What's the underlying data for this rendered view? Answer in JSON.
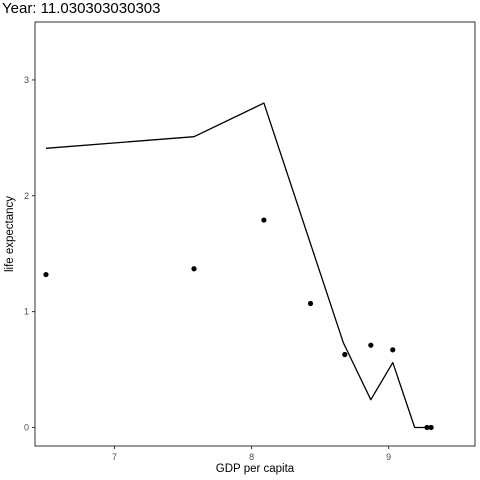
{
  "chart_data": {
    "type": "scatter",
    "title": "Year: 11.030303030303",
    "xlabel": "GDP per capita",
    "ylabel": "life expectancy",
    "xlim": [
      6.42,
      9.63
    ],
    "ylim": [
      -0.16,
      3.5
    ],
    "xticks": [
      7,
      8,
      9
    ],
    "yticks": [
      0,
      1,
      2,
      3
    ],
    "grid": false,
    "series": [
      {
        "type": "scatter",
        "x": [
          6.5,
          7.58,
          8.09,
          8.43,
          8.68,
          8.87,
          9.03,
          9.28,
          9.31
        ],
        "y": [
          1.32,
          1.37,
          1.79,
          1.07,
          0.63,
          0.71,
          0.67,
          0.0,
          0.0
        ]
      },
      {
        "type": "line",
        "x": [
          6.5,
          7.58,
          8.09,
          8.67,
          8.87,
          9.03,
          9.19,
          9.31
        ],
        "y": [
          2.41,
          2.51,
          2.8,
          0.73,
          0.24,
          0.56,
          0.0,
          0.0
        ]
      }
    ]
  }
}
